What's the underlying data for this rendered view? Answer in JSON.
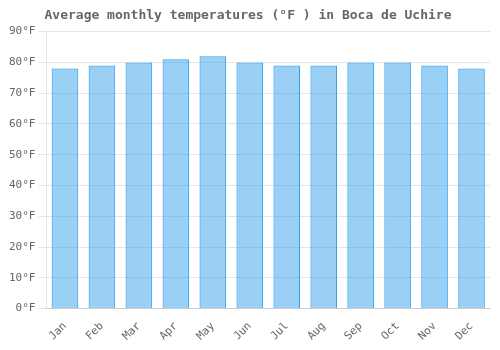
{
  "chart_data": {
    "type": "bar",
    "title": "Average monthly temperatures (°F ) in Boca de Uchire",
    "categories": [
      "Jan",
      "Feb",
      "Mar",
      "Apr",
      "May",
      "Jun",
      "Jul",
      "Aug",
      "Sep",
      "Oct",
      "Nov",
      "Dec"
    ],
    "values": [
      78,
      79,
      80,
      81,
      82,
      80,
      79,
      79,
      80,
      80,
      79,
      78
    ],
    "ylim": [
      0,
      90
    ],
    "yticks": [
      {
        "value": 0,
        "label": "0°F"
      },
      {
        "value": 10,
        "label": "10°F"
      },
      {
        "value": 20,
        "label": "20°F"
      },
      {
        "value": 30,
        "label": "30°F"
      },
      {
        "value": 40,
        "label": "40°F"
      },
      {
        "value": 50,
        "label": "50°F"
      },
      {
        "value": 60,
        "label": "60°F"
      },
      {
        "value": 70,
        "label": "70°F"
      },
      {
        "value": 80,
        "label": "80°F"
      },
      {
        "value": 90,
        "label": "90°F"
      }
    ],
    "grid": true
  }
}
